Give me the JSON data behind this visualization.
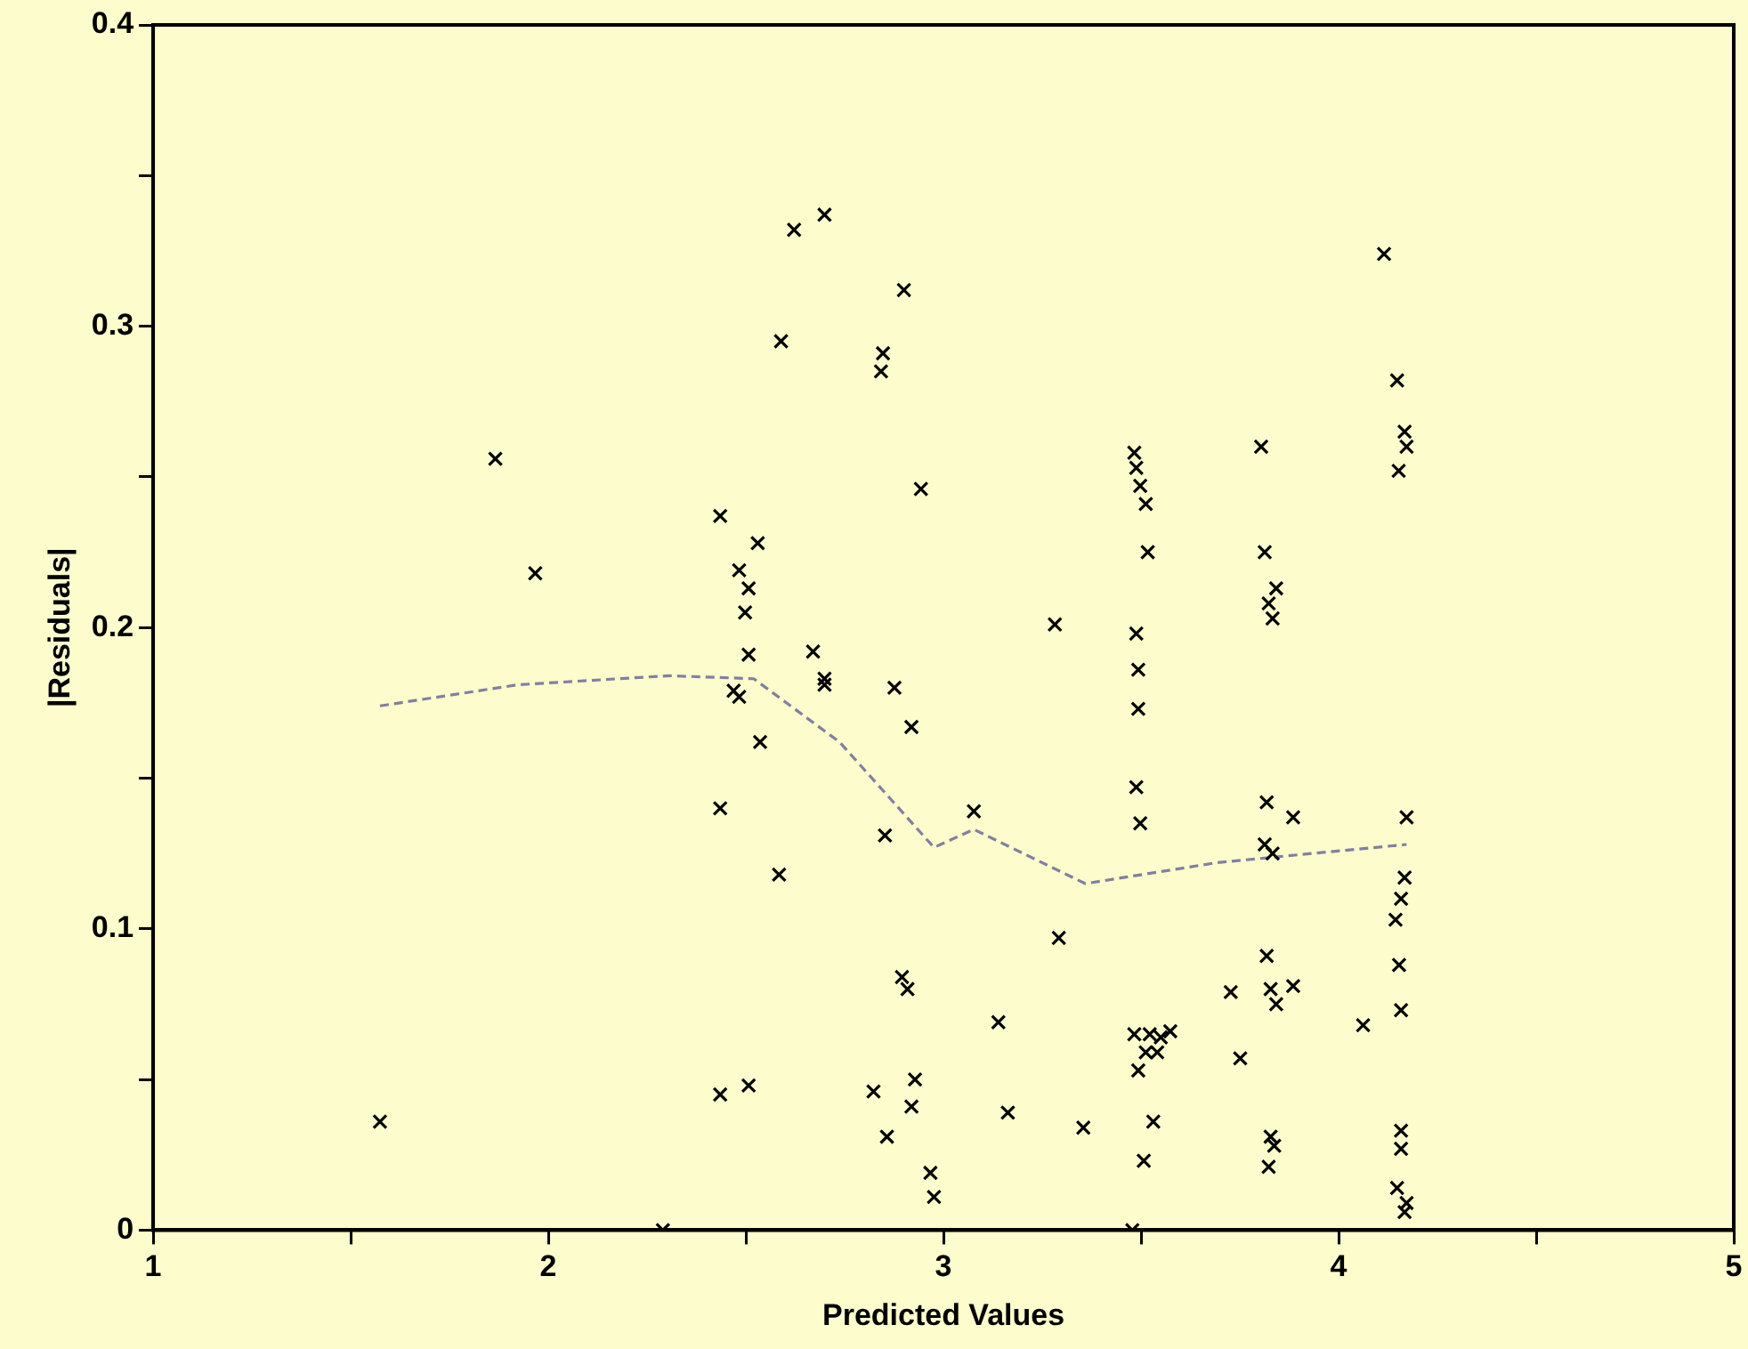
{
  "chart_data": {
    "type": "scatter",
    "xlabel": "Predicted Values",
    "ylabel": "|Residuals|",
    "xlim": [
      1,
      5
    ],
    "ylim": [
      0,
      0.4
    ],
    "xticks": [
      1,
      {
        "value": 1.5,
        "label": null
      },
      2,
      {
        "value": 2.5,
        "label": null
      },
      3,
      {
        "value": 3.5,
        "label": null
      },
      4,
      {
        "value": 4.5,
        "label": null
      },
      5
    ],
    "yticks": [
      0,
      {
        "value": 0.05,
        "label": null
      },
      0.1,
      {
        "value": 0.15,
        "label": null
      },
      0.2,
      {
        "value": 0.25,
        "label": null
      },
      0.3,
      {
        "value": 0.35,
        "label": null
      },
      0.4
    ],
    "grid": false,
    "legend": false,
    "series": [
      {
        "color": "#000000",
        "marker": "cross",
        "x": [
          1.574,
          1.866,
          1.967,
          2.29,
          2.435,
          2.53,
          2.483,
          2.507,
          2.498,
          2.507,
          2.469,
          2.483,
          2.536,
          2.435,
          2.584,
          2.435,
          2.507,
          2.622,
          2.699,
          2.589,
          2.67,
          2.699,
          2.699,
          2.823,
          2.847,
          2.842,
          2.9,
          2.943,
          2.876,
          2.919,
          2.852,
          2.895,
          2.909,
          2.928,
          2.919,
          2.857,
          2.967,
          2.976,
          3.077,
          3.139,
          3.163,
          3.282,
          3.292,
          3.354,
          3.478,
          3.483,
          3.488,
          3.498,
          3.512,
          3.517,
          3.488,
          3.493,
          3.493,
          3.488,
          3.498,
          3.483,
          3.522,
          3.55,
          3.574,
          3.512,
          3.541,
          3.493,
          3.531,
          3.507,
          3.727,
          3.751,
          3.804,
          3.813,
          3.842,
          3.823,
          3.833,
          3.818,
          3.885,
          3.813,
          3.833,
          3.818,
          3.828,
          3.842,
          3.885,
          3.828,
          3.837,
          3.823,
          4.062,
          4.115,
          4.148,
          4.167,
          4.172,
          4.152,
          4.172,
          4.167,
          4.158,
          4.144,
          4.153,
          4.158,
          4.158,
          4.158,
          4.148,
          4.172,
          4.167
        ],
        "values": [
          0.036,
          0.256,
          0.218,
          0.0,
          0.237,
          0.228,
          0.219,
          0.213,
          0.205,
          0.191,
          0.179,
          0.177,
          0.162,
          0.14,
          0.118,
          0.045,
          0.048,
          0.332,
          0.337,
          0.295,
          0.192,
          0.183,
          0.181,
          0.046,
          0.291,
          0.285,
          0.312,
          0.246,
          0.18,
          0.167,
          0.131,
          0.084,
          0.08,
          0.05,
          0.041,
          0.031,
          0.019,
          0.011,
          0.139,
          0.069,
          0.039,
          0.201,
          0.097,
          0.034,
          0.0,
          0.258,
          0.253,
          0.247,
          0.241,
          0.225,
          0.198,
          0.186,
          0.173,
          0.147,
          0.135,
          0.065,
          0.065,
          0.064,
          0.066,
          0.059,
          0.059,
          0.053,
          0.036,
          0.023,
          0.079,
          0.057,
          0.26,
          0.225,
          0.213,
          0.208,
          0.203,
          0.142,
          0.137,
          0.128,
          0.125,
          0.091,
          0.08,
          0.075,
          0.081,
          0.031,
          0.028,
          0.021,
          0.068,
          0.324,
          0.282,
          0.265,
          0.26,
          0.252,
          0.137,
          0.117,
          0.11,
          0.103,
          0.088,
          0.073,
          0.033,
          0.027,
          0.014,
          0.009,
          0.006
        ]
      },
      {
        "type": "line",
        "color": "#8080a0",
        "marker": "none",
        "line_style": "dashed",
        "x": [
          1.574,
          1.923,
          2.306,
          2.52,
          2.737,
          2.976,
          3.077,
          3.359,
          3.694,
          4.172
        ],
        "values": [
          0.174,
          0.181,
          0.184,
          0.183,
          0.162,
          0.127,
          0.133,
          0.115,
          0.122,
          0.128
        ]
      }
    ]
  }
}
